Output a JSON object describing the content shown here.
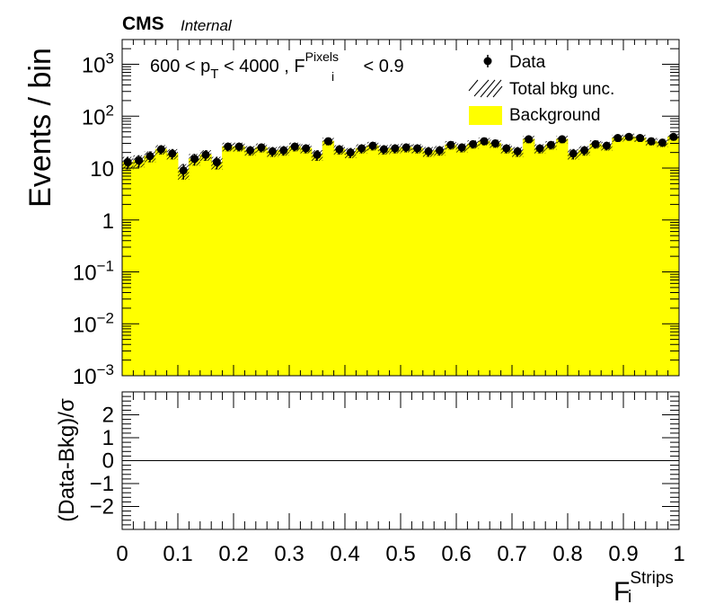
{
  "header": {
    "experiment": "CMS",
    "status": "Internal"
  },
  "annotation": {
    "cut_text_prefix": "600 < p",
    "pt_subscript": "T",
    "cut_text_mid": " < 4000 , F",
    "f_subscript": "i",
    "f_superscript": "Pixels",
    "cut_text_suffix": " < 0.9"
  },
  "legend": {
    "data_label": "Data",
    "unc_label": "Total bkg unc.",
    "bkg_label": "Background"
  },
  "colors": {
    "background_fill": "#ffff00",
    "data_marker": "#000000"
  },
  "chart_data": [
    {
      "type": "bar",
      "name": "main-panel",
      "log_y": true,
      "ylabel": "Events / bin",
      "xlim": [
        0,
        1
      ],
      "ylim": [
        0.001,
        3000
      ],
      "y_ticks": [
        {
          "value": 0.001,
          "base": "10",
          "exp": "−3"
        },
        {
          "value": 0.01,
          "base": "10",
          "exp": "−2"
        },
        {
          "value": 0.1,
          "base": "10",
          "exp": "−1"
        },
        {
          "value": 1,
          "base": "1",
          "exp": ""
        },
        {
          "value": 10,
          "base": "10",
          "exp": ""
        },
        {
          "value": 100,
          "base": "10",
          "exp": "2"
        },
        {
          "value": 1000,
          "base": "10",
          "exp": "3"
        }
      ],
      "bin_width": 0.02,
      "bin_low_edges": [
        0.0,
        0.02,
        0.04,
        0.06,
        0.08,
        0.1,
        0.12,
        0.14,
        0.16,
        0.18,
        0.2,
        0.22,
        0.24,
        0.26,
        0.28,
        0.3,
        0.32,
        0.34,
        0.36,
        0.38,
        0.4,
        0.42,
        0.44,
        0.46,
        0.48,
        0.5,
        0.52,
        0.54,
        0.56,
        0.58,
        0.6,
        0.62,
        0.64,
        0.66,
        0.68,
        0.7,
        0.72,
        0.74,
        0.76,
        0.78,
        0.8,
        0.82,
        0.84,
        0.86,
        0.88,
        0.9,
        0.92,
        0.94,
        0.96,
        0.98
      ],
      "series": [
        {
          "name": "Background",
          "values": [
            13,
            14,
            17,
            23,
            19,
            9,
            15,
            18,
            13,
            26,
            26,
            22,
            25,
            21,
            22,
            26,
            24,
            18,
            33,
            23,
            20,
            24,
            27,
            23,
            24,
            25,
            24,
            21,
            22,
            28,
            25,
            29,
            33,
            30,
            24,
            21,
            36,
            24,
            28,
            36,
            19,
            22,
            29,
            27,
            38,
            40,
            38,
            33,
            31,
            40
          ]
        },
        {
          "name": "Data",
          "values": [
            13,
            14,
            17,
            23,
            19,
            9,
            15,
            18,
            13,
            26,
            26,
            22,
            25,
            21,
            22,
            26,
            24,
            18,
            33,
            23,
            20,
            24,
            27,
            23,
            24,
            25,
            24,
            21,
            22,
            28,
            25,
            29,
            33,
            30,
            24,
            21,
            36,
            24,
            28,
            36,
            19,
            22,
            29,
            27,
            38,
            40,
            38,
            33,
            31,
            40
          ]
        }
      ]
    },
    {
      "type": "line",
      "name": "ratio-panel",
      "ylabel": "(Data-Bkg)/σ",
      "xlabel_base": "F",
      "xlabel_sub": "i",
      "xlabel_sup": "Strips",
      "xlim": [
        0,
        1
      ],
      "ylim": [
        -3,
        3
      ],
      "x_ticks": [
        "0",
        "0.1",
        "0.2",
        "0.3",
        "0.4",
        "0.5",
        "0.6",
        "0.7",
        "0.8",
        "0.9",
        "1"
      ],
      "y_ticks": [
        "−2",
        "−1",
        "0",
        "1",
        "2"
      ],
      "reference_line": 0
    }
  ]
}
